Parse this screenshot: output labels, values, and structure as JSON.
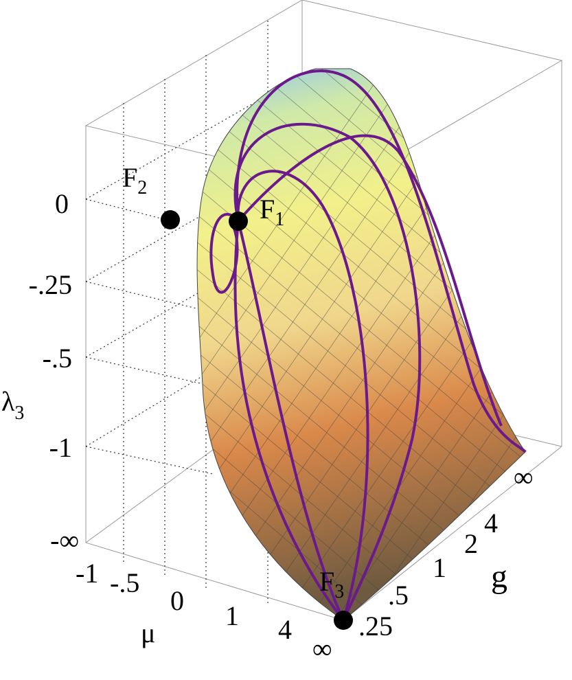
{
  "axes": {
    "lambda3": {
      "symbol": "λ",
      "subscript": "3",
      "ticks": [
        "0",
        "-.25",
        "-.5",
        "-1",
        "-∞"
      ]
    },
    "mu": {
      "symbol": "μ",
      "ticks": [
        "-1",
        "-.5",
        "0",
        "1",
        "4",
        "∞"
      ]
    },
    "g": {
      "symbol": "g",
      "ticks": [
        ".25",
        ".5",
        "1",
        "2",
        "4",
        "∞"
      ]
    }
  },
  "points": [
    {
      "symbol": "F",
      "subscript": "1"
    },
    {
      "symbol": "F",
      "subscript": "2"
    },
    {
      "symbol": "F",
      "subscript": "3"
    }
  ]
}
